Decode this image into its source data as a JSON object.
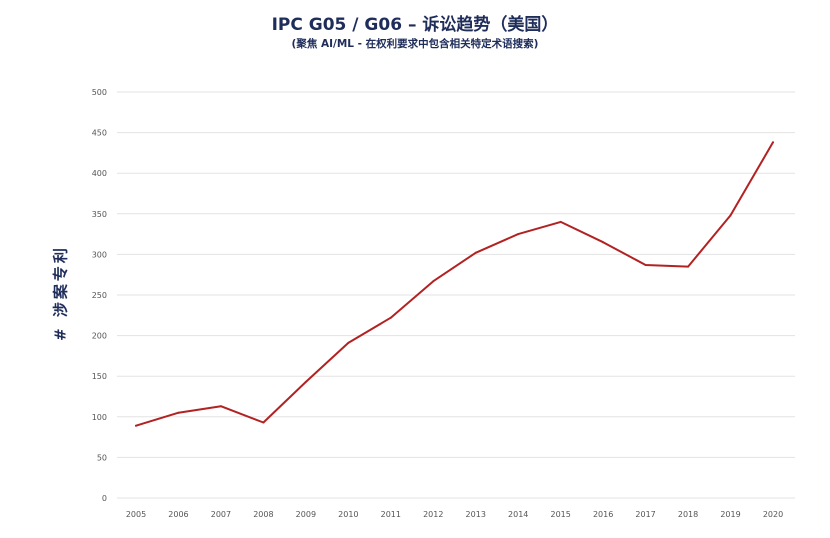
{
  "title": "IPC G05 / G06 – 诉讼趋势（美国）",
  "subtitle": "(聚焦 AI/ML - 在权利要求中包含相关特定术语搜索)",
  "chart_data": {
    "type": "line",
    "title": "IPC G05 / G06 – 诉讼趋势（美国）",
    "subtitle": "(聚焦 AI/ML - 在权利要求中包含相关特定术语搜索)",
    "xlabel": "",
    "ylabel": "# 涉案专利",
    "x": [
      "2005",
      "2006",
      "2007",
      "2008",
      "2009",
      "2010",
      "2011",
      "2012",
      "2013",
      "2014",
      "2015",
      "2016",
      "2017",
      "2018",
      "2019",
      "2020"
    ],
    "series": [
      {
        "values": [
          89,
          105,
          113,
          93,
          143,
          191,
          222,
          267,
          302,
          325,
          340,
          315,
          287,
          285,
          348,
          438
        ]
      }
    ],
    "ylim": [
      0,
      500
    ],
    "yticks": [
      0,
      50,
      100,
      150,
      200,
      250,
      300,
      350,
      400,
      450,
      500
    ],
    "ytick_labels": [
      "0",
      "50",
      "100",
      "150",
      "200",
      "250",
      "300",
      "350",
      "400",
      "450",
      "500"
    ],
    "grid": true,
    "line_color": "#b22222",
    "grid_color": "#e3e3e3"
  }
}
